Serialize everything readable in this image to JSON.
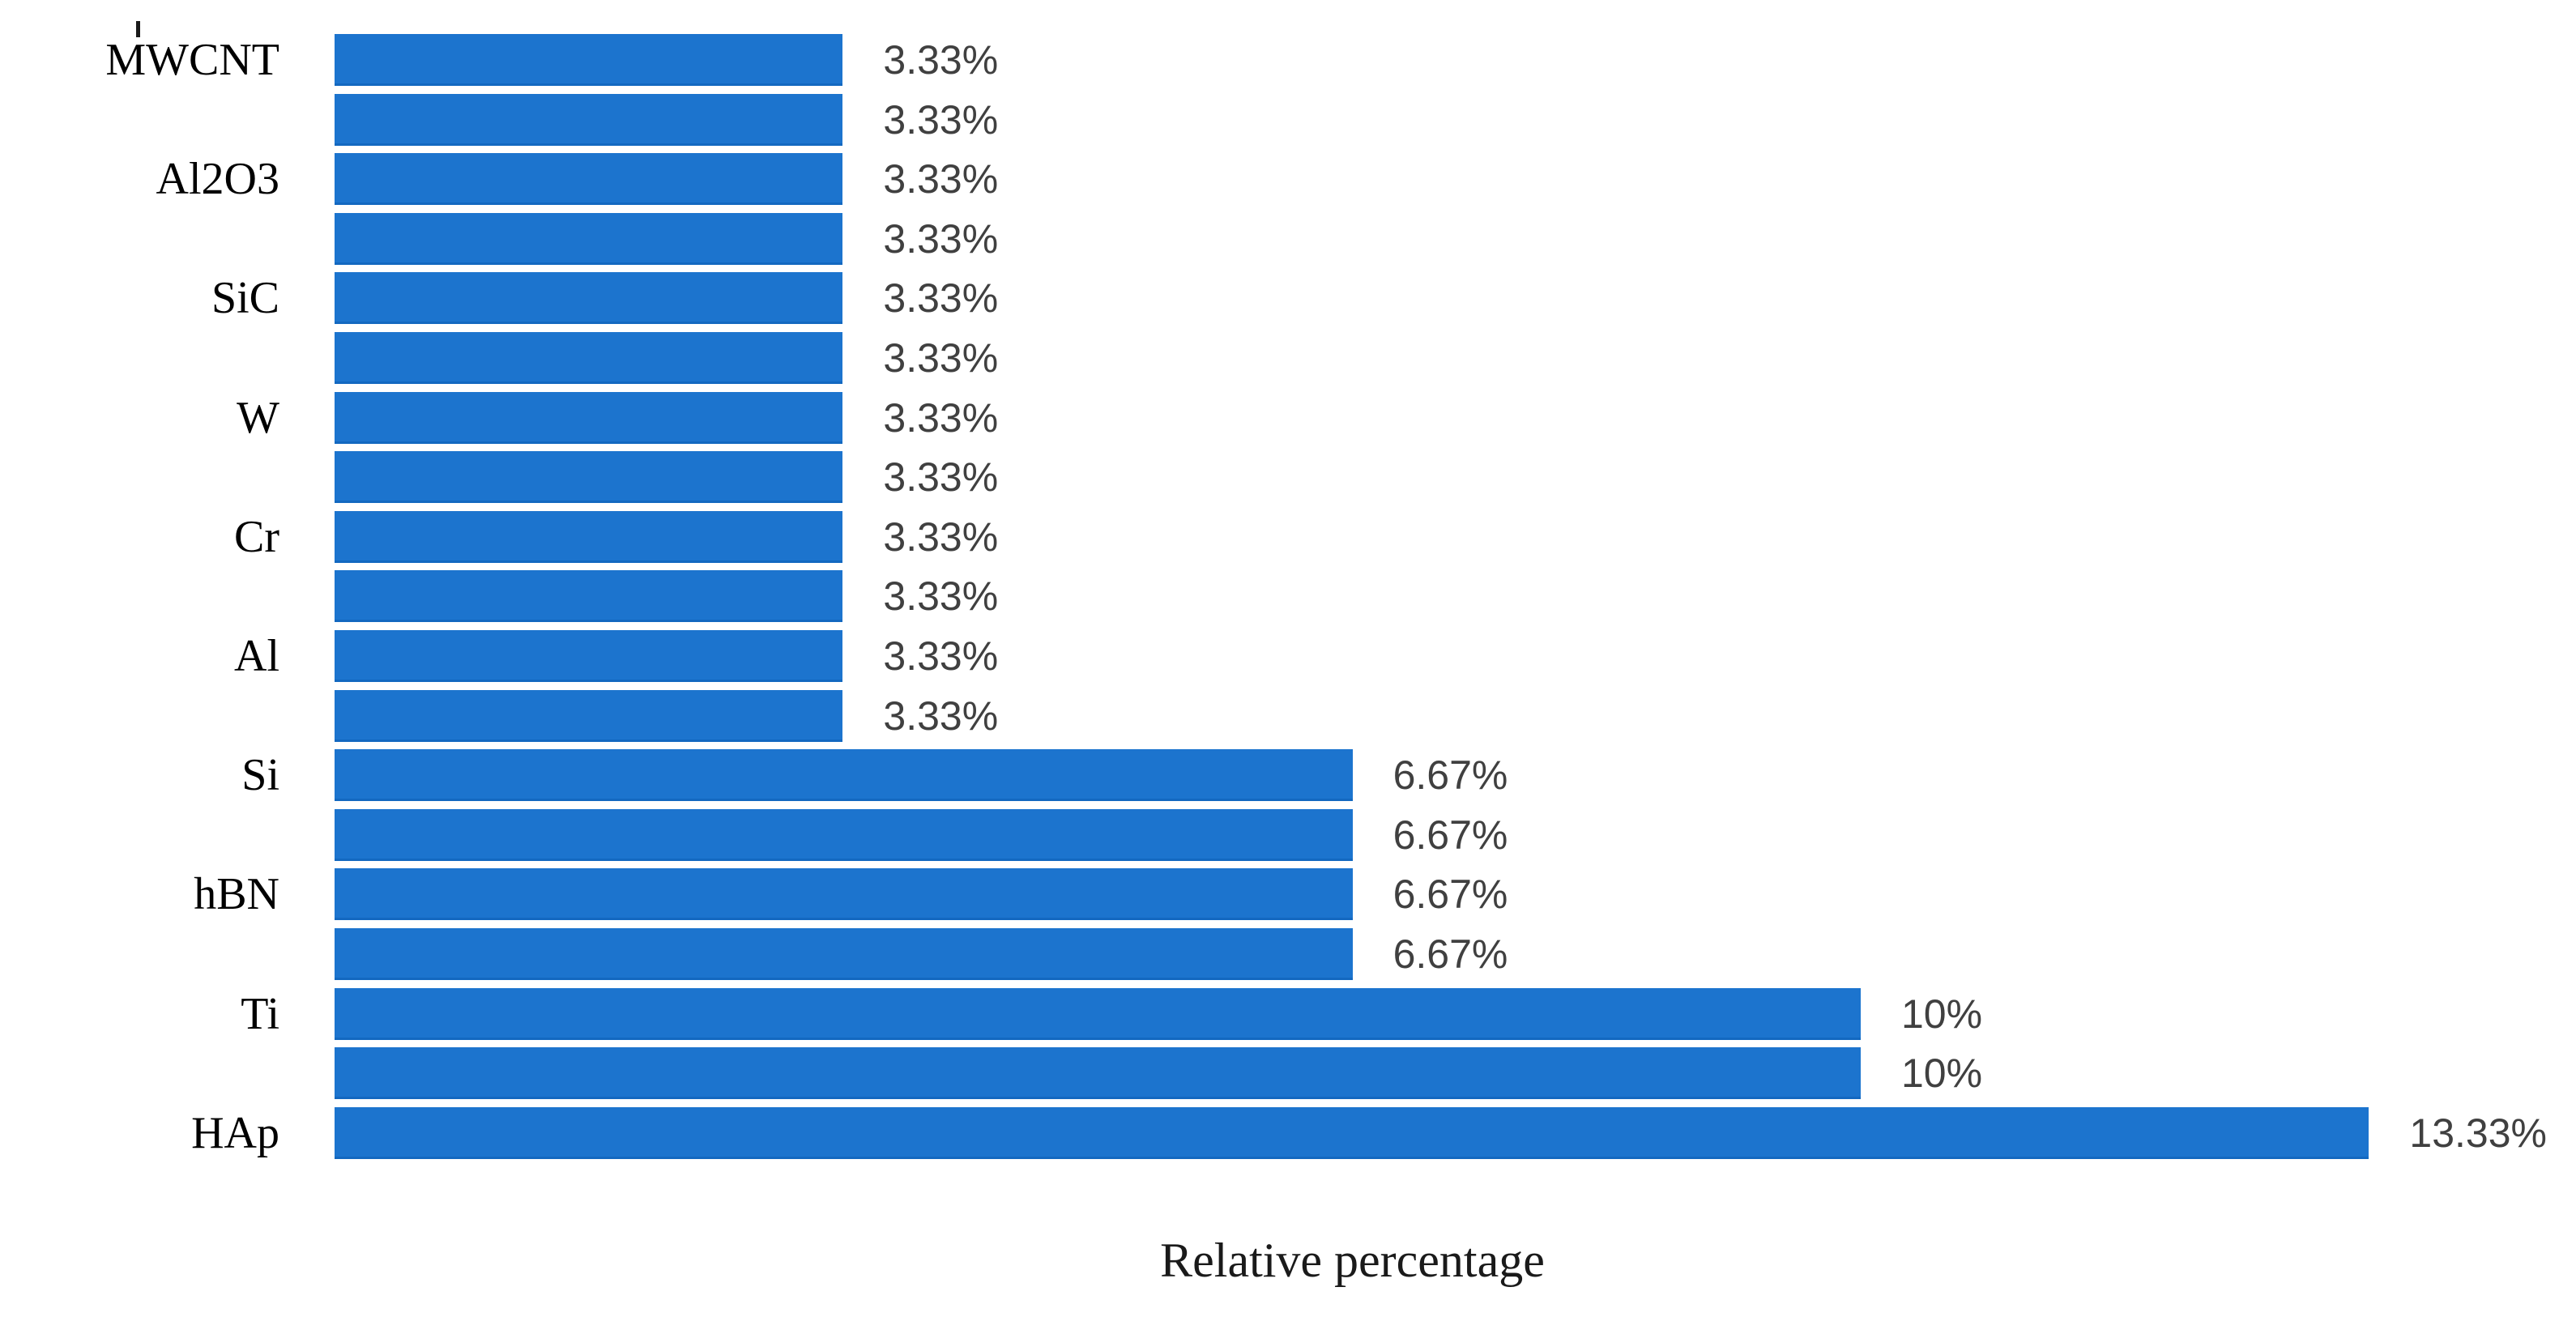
{
  "chart_data": {
    "type": "bar",
    "orientation": "horizontal",
    "title": "",
    "xlabel": "Relative percentage",
    "ylabel": "",
    "xlim": [
      0,
      13.9
    ],
    "grid": false,
    "legend": "none",
    "bar_color": "#1C74CE",
    "value_label_color": "#404040",
    "category_label_color": "#000000",
    "categories": [
      "MWCNT",
      "",
      "Al2O3",
      "",
      "SiC",
      "",
      "W",
      "",
      "Cr",
      "",
      "Al",
      "",
      "Si",
      "",
      "hBN",
      "",
      "Ti",
      "",
      "HAp"
    ],
    "values": [
      3.33,
      3.33,
      3.33,
      3.33,
      3.33,
      3.33,
      3.33,
      3.33,
      3.33,
      3.33,
      3.33,
      3.33,
      6.67,
      6.67,
      6.67,
      6.67,
      10,
      10,
      13.33
    ],
    "value_labels": [
      "3.33%",
      "3.33%",
      "3.33%",
      "3.33%",
      "3.33%",
      "3.33%",
      "3.33%",
      "3.33%",
      "3.33%",
      "3.33%",
      "3.33%",
      "3.33%",
      "6.67%",
      "6.67%",
      "6.67%",
      "6.67%",
      "10%",
      "10%",
      "13.33%"
    ]
  }
}
